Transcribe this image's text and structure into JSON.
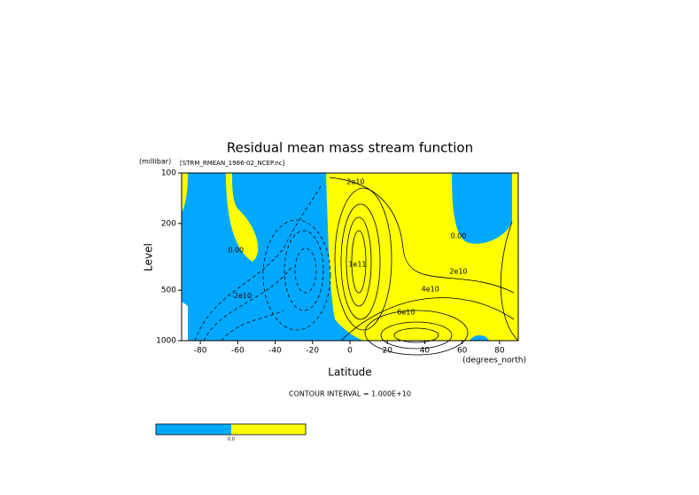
{
  "chart_data": {
    "type": "contour",
    "title": "Residual mean mass stream function",
    "subtitle": "[STRM_RMEAN_1986-02_NCEP.nc]",
    "xlabel": "Latitude",
    "xunit": "(degrees_north)",
    "ylabel": "Level",
    "yunit": "(millibar)",
    "xlim": [
      -90,
      90
    ],
    "xticks": [
      -80,
      -60,
      -40,
      -20,
      0,
      20,
      40,
      60,
      80
    ],
    "ylim": [
      1000,
      100
    ],
    "yticks": [
      100,
      200,
      500,
      1000
    ],
    "log_scale_y": true,
    "footer": "CONTOUR INTERVAL = 1.000E+10",
    "negative_color": "#00a9ff",
    "positive_color": "#ffff00",
    "colorbar_label": "0.0",
    "annotations": [
      {
        "text": "2e10",
        "lat": 3,
        "level": 113
      },
      {
        "text": "0.00",
        "lat": -61,
        "level": 288
      },
      {
        "text": "-2e10",
        "lat": -58,
        "level": 540
      },
      {
        "text": "0.00",
        "lat": 58,
        "level": 238
      },
      {
        "text": "2e10",
        "lat": 58,
        "level": 386
      },
      {
        "text": "4e10",
        "lat": 43,
        "level": 493
      },
      {
        "text": "6e10",
        "lat": 30,
        "level": 676
      },
      {
        "text": "1e11",
        "lat": 4,
        "level": 351
      }
    ]
  }
}
